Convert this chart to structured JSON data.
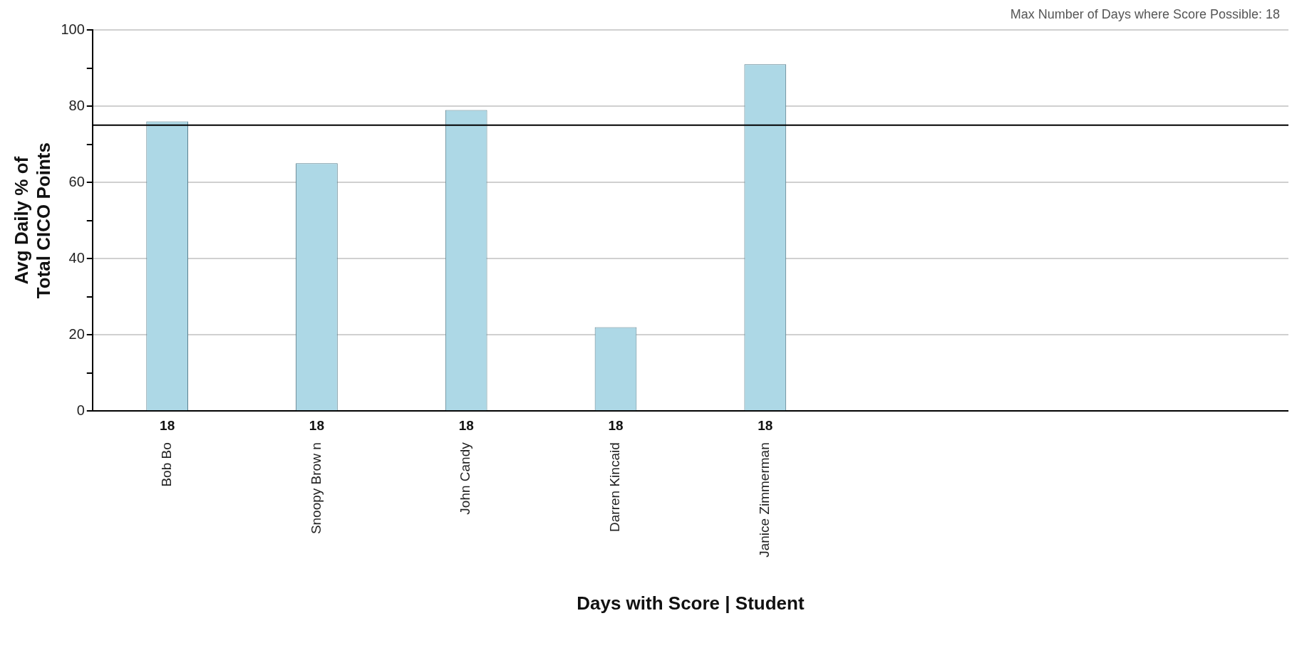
{
  "chart_data": {
    "type": "bar",
    "xlabel": "Days with Score | Student",
    "ylabel": "Avg Daily % of\nTotal CICO Points",
    "categories": [
      "Bob Bo",
      "Snoopy Brow n",
      "John Candy",
      "Darren Kincaid",
      "Janice Zimmerman",
      null,
      null,
      null
    ],
    "values": [
      76,
      65,
      79,
      22,
      91,
      null,
      null,
      null
    ],
    "color": "#add8e6",
    "ylim": [
      0,
      100
    ],
    "yticks": [
      0,
      {
        "value": 10,
        "label": null
      },
      20,
      {
        "value": 30,
        "label": null
      },
      40,
      {
        "value": 50,
        "label": null
      },
      60,
      {
        "value": 70,
        "label": null
      },
      80,
      {
        "value": 90,
        "label": null
      },
      100
    ],
    "grid": "y",
    "legend": false,
    "ref_lines": [
      {
        "axis": "y",
        "value": 75,
        "color": "#000000"
      }
    ],
    "annotations": [
      "Max Number of Days where Score Possible: 18",
      "18",
      "18",
      "18",
      "18",
      "18"
    ]
  }
}
